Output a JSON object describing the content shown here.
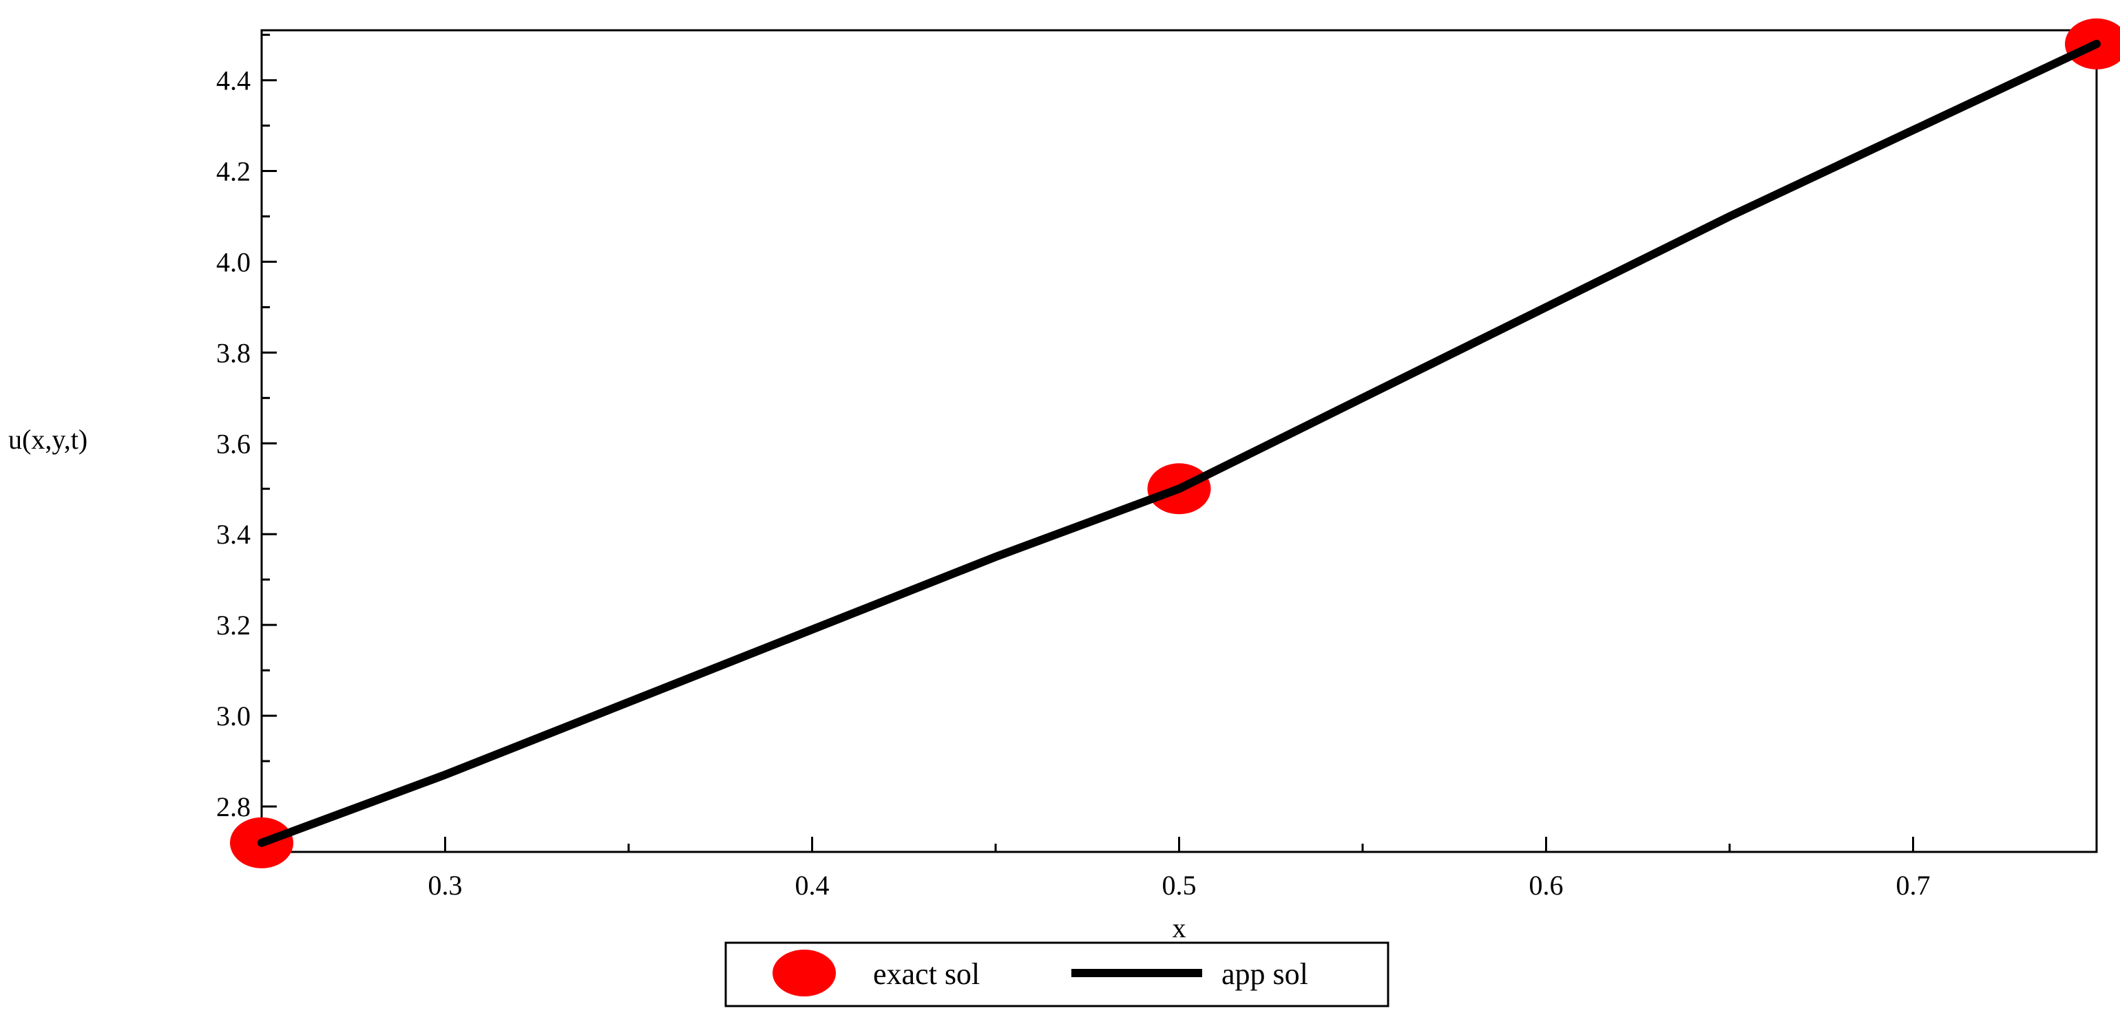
{
  "chart_data": {
    "type": "line",
    "title": "",
    "xlabel": "x",
    "ylabel": "u(x,y,t)",
    "xlim": [
      0.25,
      0.75
    ],
    "ylim": [
      2.7,
      4.51
    ],
    "x_ticks": [
      0.3,
      0.4,
      0.5,
      0.6,
      0.7
    ],
    "x_tick_labels": [
      "0.3",
      "0.4",
      "0.5",
      "0.6",
      "0.7"
    ],
    "y_ticks": [
      2.8,
      3.0,
      3.2,
      3.4,
      3.6,
      3.8,
      4.0,
      4.2,
      4.4
    ],
    "y_tick_labels": [
      "2.8",
      "3.0",
      "3.2",
      "3.4",
      "3.6",
      "3.8",
      "4.0",
      "4.2",
      "4.4"
    ],
    "grid": false,
    "legend_position": "bottom-center",
    "series": [
      {
        "name": "exact sol",
        "kind": "scatter",
        "color": "#ff0000",
        "x": [
          0.25,
          0.5,
          0.75
        ],
        "y": [
          2.72,
          3.5,
          4.48
        ]
      },
      {
        "name": "app sol",
        "kind": "line",
        "color": "#000000",
        "x": [
          0.25,
          0.3,
          0.35,
          0.4,
          0.45,
          0.5,
          0.55,
          0.6,
          0.65,
          0.7,
          0.75
        ],
        "y": [
          2.72,
          2.87,
          3.03,
          3.19,
          3.35,
          3.5,
          3.7,
          3.9,
          4.1,
          4.29,
          4.48
        ]
      }
    ]
  }
}
